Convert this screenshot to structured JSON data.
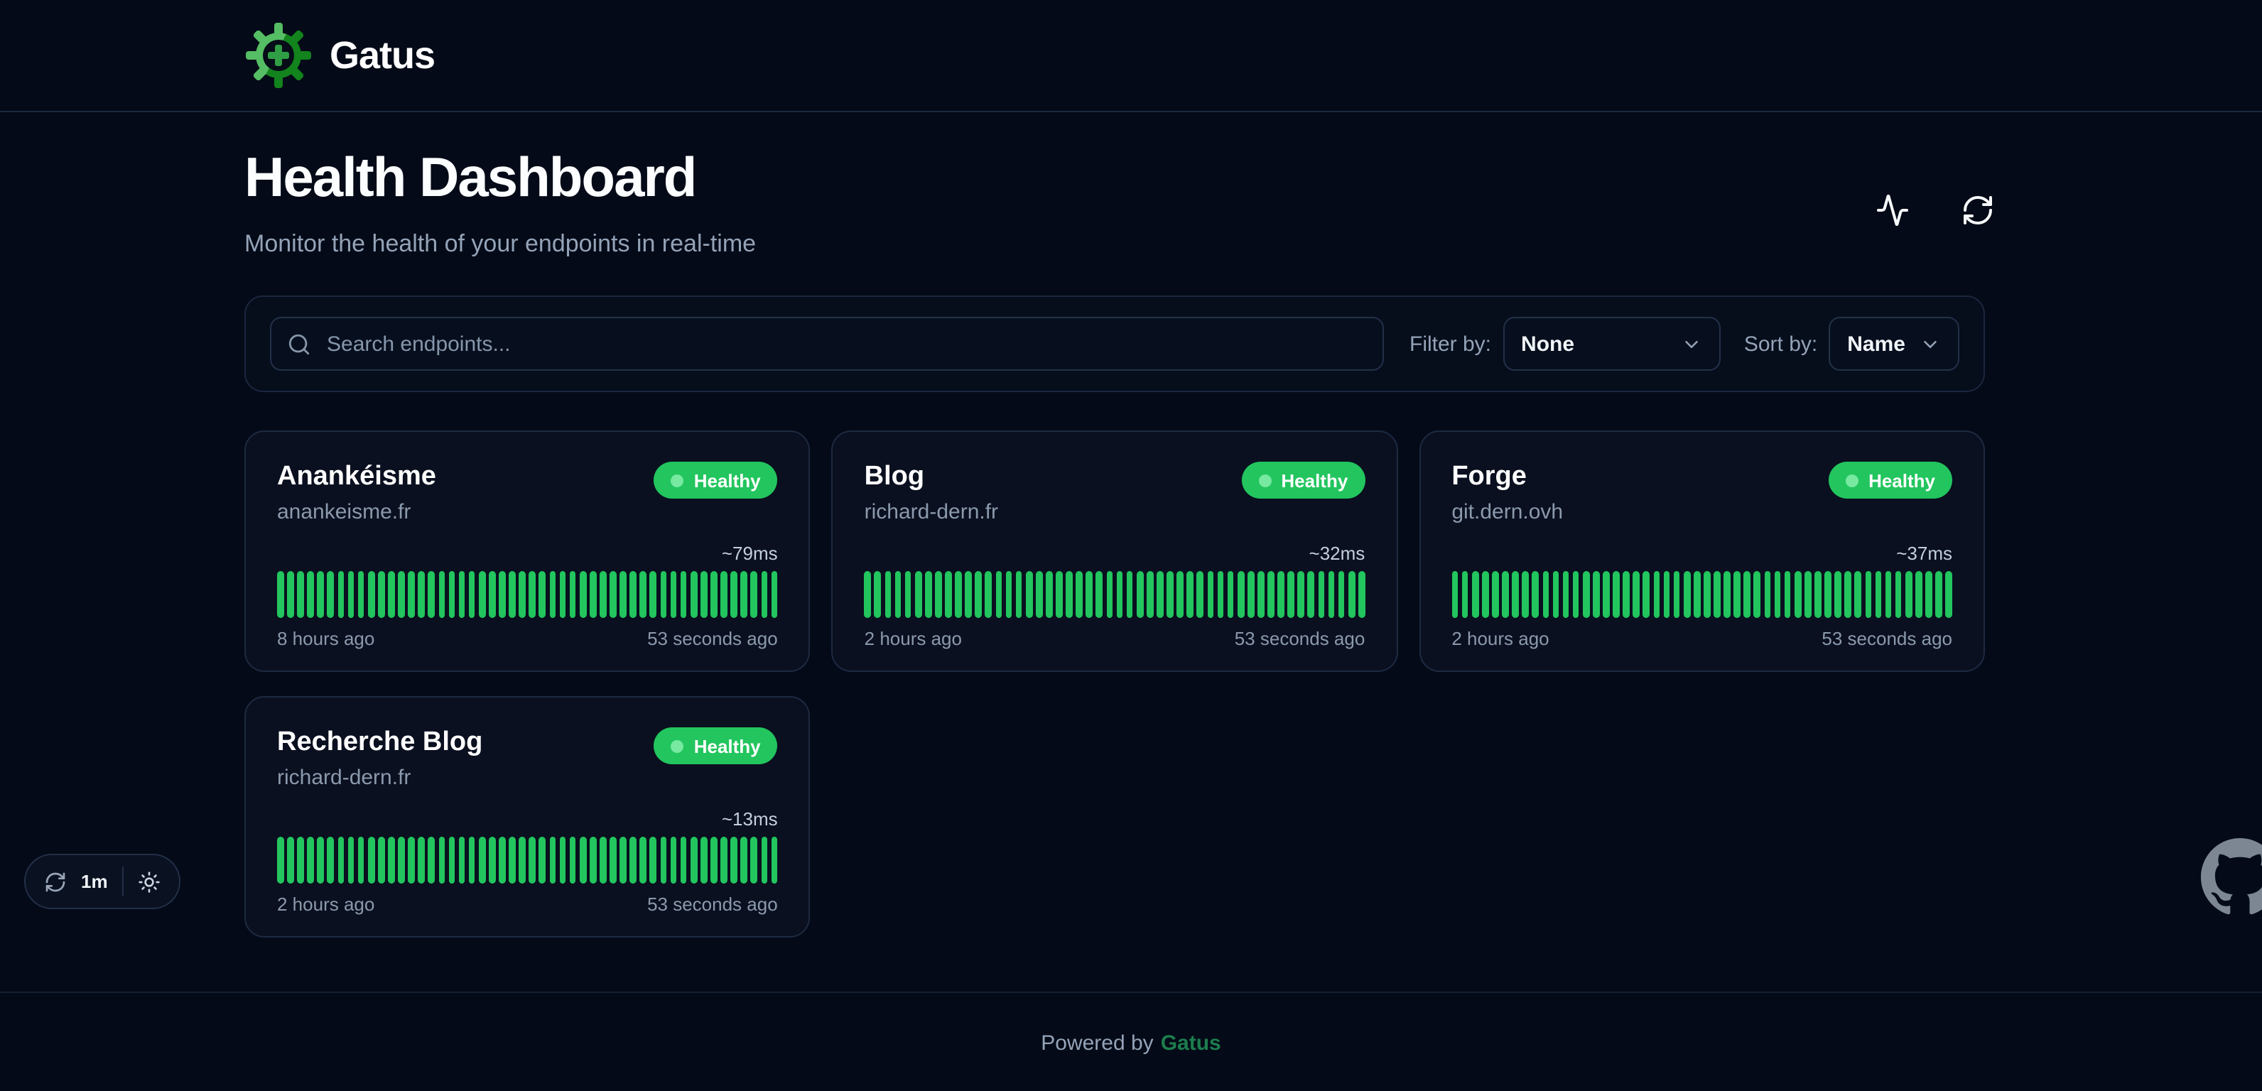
{
  "brand": {
    "name": "Gatus"
  },
  "page": {
    "title": "Health Dashboard",
    "subtitle": "Monitor the health of your endpoints in real-time"
  },
  "toolbar": {
    "search_placeholder": "Search endpoints...",
    "filter_label": "Filter by:",
    "filter_value": "None",
    "sort_label": "Sort by:",
    "sort_value": "Name"
  },
  "endpoints": [
    {
      "name": "Anankéisme",
      "host": "anankeisme.fr",
      "status": "Healthy",
      "latency": "~79ms",
      "from": "8 hours ago",
      "to": "53 seconds ago",
      "bars": 50
    },
    {
      "name": "Blog",
      "host": "richard-dern.fr",
      "status": "Healthy",
      "latency": "~32ms",
      "from": "2 hours ago",
      "to": "53 seconds ago",
      "bars": 50
    },
    {
      "name": "Forge",
      "host": "git.dern.ovh",
      "status": "Healthy",
      "latency": "~37ms",
      "from": "2 hours ago",
      "to": "53 seconds ago",
      "bars": 50
    },
    {
      "name": "Recherche Blog",
      "host": "richard-dern.fr",
      "status": "Healthy",
      "latency": "~13ms",
      "from": "2 hours ago",
      "to": "53 seconds ago",
      "bars": 50
    }
  ],
  "refresh_widget": {
    "interval": "1m"
  },
  "footer": {
    "powered_by": "Powered by",
    "brand": "Gatus"
  },
  "icons": {
    "header": [
      "activity-icon",
      "refresh-icon"
    ],
    "toolbar": [
      "search-icon",
      "chevron-down-icon"
    ],
    "pill": [
      "refresh-icon",
      "sun-icon"
    ],
    "misc": [
      "gatus-logo-icon",
      "github-icon"
    ]
  },
  "colors": {
    "background": "#040a17",
    "card_background": "#0a101f",
    "border": "#1d2a42",
    "status_green": "#22c55e",
    "badge_dot": "#86efac",
    "link_green": "#1c7d4d",
    "text_muted": "#94a3b8"
  }
}
